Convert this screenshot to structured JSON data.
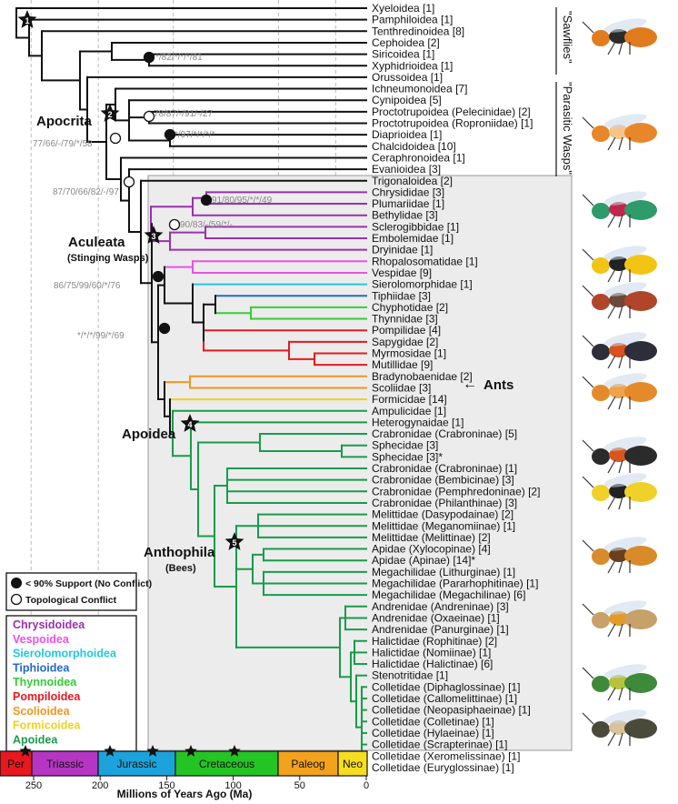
{
  "taxa": [
    "Xyeloidea [1]",
    "Pamphiloidea [1]",
    "Tenthredinoidea [8]",
    "Cephoidea [2]",
    "Siricoidea [1]",
    "Xyphidrioidea [1]",
    "Orussoidea [1]",
    "Ichneumonoidea [7]",
    "Cynipoidea [5]",
    "Proctotrupoidea (Pelecinidae) [2]",
    "Proctotrupoidea (Roproniidae) [1]",
    "Diaprioidea [1]",
    "Chalcidoidea [10]",
    "Ceraphronoidea [1]",
    "Evanioidea [3]",
    "Trigonaloidea [2]",
    "Chrysididae [3]",
    "Plumariidae [1]",
    "Bethylidae [3]",
    "Sclerogibbidae [1]",
    "Embolemidae [1]",
    "Dryinidae [1]",
    "Rhopalosomatidae [1]",
    "Vespidae [9]",
    "Sierolomorphidae [1]",
    "Tiphiidae [3]",
    "Chyphotidae [2]",
    "Thynnidae [3]",
    "Pompilidae [4]",
    "Sapygidae [2]",
    "Myrmosidae [1]",
    "Mutillidae [9]",
    "Bradynobaenidae [2]",
    "Scoliidae [3]",
    "Formicidae [14]",
    "Ampulicidae [1]",
    "Heterogynaidae [1]",
    "Crabronidae (Crabroninae) [5]",
    "Sphecidae [3]",
    "Sphecidae [3]*",
    "Crabronidae (Crabroninae) [1]",
    "Crabronidae (Bembicinae) [3]",
    "Crabronidae (Pemphredoninae) [2]",
    "Crabronidae (Philanthinae) [3]",
    "Melittidae (Dasypodainae) [2]",
    "Melittidae (Meganomiinae) [1]",
    "Melittidae (Melittinae) [2]",
    "Apidae (Xylocopinae) [4]",
    "Apidae (Apinae) [14]*",
    "Megachilidae (Lithurginae) [1]",
    "Megachilidae (Pararhophitinae) [1]",
    "Megachilidae (Megachilinae) [6]",
    "Andrenidae (Andreninae) [3]",
    "Andrenidae (Oxaeinae) [1]",
    "Andrenidae (Panurginae) [1]",
    "Halictidae (Rophitinae) [2]",
    "Halictidae (Nomiinae) [1]",
    "Halictidae (Halictinae) [6]",
    "Stenotritidae [1]",
    "Colletidae (Diphaglossinae) [1]",
    "Colletidae (Callomelittinae) [1]",
    "Colletidae (Neopasiphaeinae) [1]",
    "Colletidae (Colletinae) [1]",
    "Colletidae (Hylaeinae) [1]",
    "Colletidae (Scrapterinae) [1]",
    "Colletidae (Xeromelissinae) [1]",
    "Colletidae (Euryglossinae) [1]"
  ],
  "group_labels": {
    "sawflies": "\"Sawflies\"",
    "parasitic": "\"Parasitic Wasps\""
  },
  "clade_labels": {
    "apocrita": "Apocrita",
    "aculeata": "Aculeata",
    "aculeata_sub": "(Stinging Wasps)",
    "apoidea": "Apoidea",
    "anthophila": "Anthophila",
    "anthophila_sub": "(Bees)",
    "ants": "Ants",
    "ants_arrow": "←"
  },
  "support_values": {
    "s1": "*/82/*/*/*/81",
    "s2": "78/87/-/91/-/27",
    "s3": "*/97/*/*/*/*",
    "s4": "77/66/-/79/*/58",
    "s5": "87/70/66/82/-/97",
    "s6": "91/80/95/*/*/49",
    "s7": "90/83/-/59/*/-",
    "s8": "86/75/99/60/*/76",
    "s9": "*/*/*/99/*/69"
  },
  "star_labels": [
    "1",
    "2",
    "3",
    "4",
    "5"
  ],
  "node_legend": {
    "filled": "< 90% Support (No Conflict)",
    "open": "Topological Conflict"
  },
  "superfamily_legend": [
    {
      "name": "Chrysidoidea",
      "color": "#9b2fae"
    },
    {
      "name": "Vespoidea",
      "color": "#ee4fe8"
    },
    {
      "name": "Sierolomorphoidea",
      "color": "#22c8e0"
    },
    {
      "name": "Tiphioidea",
      "color": "#2469c9"
    },
    {
      "name": "Thynnoidea",
      "color": "#36cc36"
    },
    {
      "name": "Pompiloidea",
      "color": "#e8181e"
    },
    {
      "name": "Scolioidea",
      "color": "#f2951d"
    },
    {
      "name": "Formicoidea",
      "color": "#f1d21a"
    },
    {
      "name": "Apoidea",
      "color": "#169c4a"
    }
  ],
  "timescale": {
    "axis_label": "Millions of Years Ago (Ma)",
    "ticks": [
      "250",
      "200",
      "150",
      "100",
      "50",
      "0"
    ],
    "periods": [
      {
        "name": "Per",
        "color": "#e8181e"
      },
      {
        "name": "Triassic",
        "color": "#b536c2"
      },
      {
        "name": "Jurassic",
        "color": "#1ca3dc"
      },
      {
        "name": "Cretaceous",
        "color": "#25c425"
      },
      {
        "name": "Paleog",
        "color": "#f2a21c"
      },
      {
        "name": "Neo",
        "color": "#f7dd20"
      }
    ]
  },
  "photo_subjects": [
    "sawfly",
    "parasitic-wasp",
    "cuckoo-wasp",
    "vespid-wasp",
    "velvet-ant",
    "spider-wasp",
    "ant",
    "thread-waisted-wasp",
    "crabronid-wasp",
    "bumble-bee",
    "mining-bee",
    "sweat-bee",
    "cellophane-bee"
  ]
}
